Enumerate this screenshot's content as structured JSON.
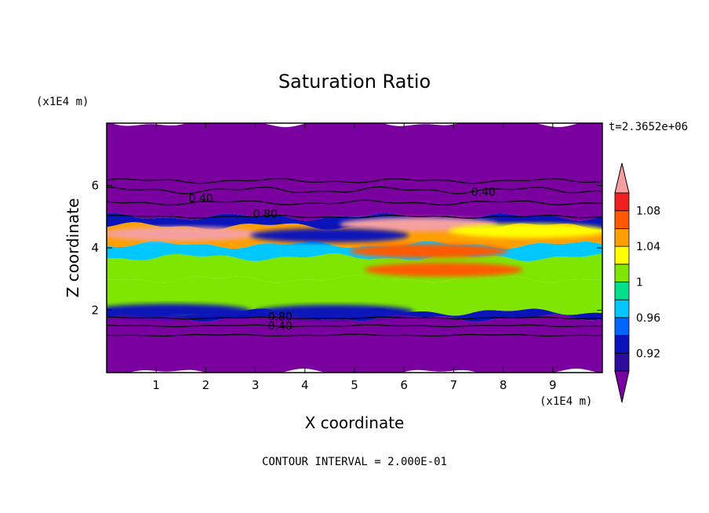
{
  "chart_data": {
    "type": "heatmap",
    "title": "Saturation Ratio",
    "xlabel": "X coordinate",
    "ylabel": "Z coordinate",
    "x_unit": "(x1E4 m)",
    "y_unit": "(x1E4 m)",
    "time_label": "t=2.3652e+06",
    "footer": "CONTOUR INTERVAL = 2.000E-01",
    "xlim": [
      0,
      10
    ],
    "ylim": [
      0,
      8
    ],
    "x_ticks": [
      "1",
      "2",
      "3",
      "4",
      "5",
      "6",
      "7",
      "8",
      "9"
    ],
    "y_ticks": [
      "2",
      "4",
      "6"
    ],
    "colorbar": {
      "levels": [
        0.9,
        0.92,
        0.94,
        0.96,
        0.98,
        1.0,
        1.02,
        1.04,
        1.06,
        1.08,
        1.1
      ],
      "labels": [
        "0.92",
        "0.96",
        "1",
        "1.04",
        "1.08"
      ],
      "colors": [
        "#7a00a0",
        "#2d0d9e",
        "#0a14b8",
        "#0064ff",
        "#00c8ff",
        "#00e08c",
        "#7ee600",
        "#ffff00",
        "#ffa000",
        "#ff5a00",
        "#f02020",
        "#f5a0a0"
      ]
    },
    "contour_labels": [
      {
        "text": "0.40",
        "x": 1.9,
        "z": 5.6
      },
      {
        "text": "0.40",
        "x": 7.6,
        "z": 5.8
      },
      {
        "text": "0.80",
        "x": 3.2,
        "z": 5.1
      },
      {
        "text": "0.80",
        "x": 3.5,
        "z": 1.8
      },
      {
        "text": "0.40",
        "x": 3.5,
        "z": 1.5
      }
    ],
    "bands": [
      {
        "z0": 0.0,
        "z1": 1.75,
        "value": 0.1
      },
      {
        "z0": 1.75,
        "z1": 1.95,
        "value": 0.93
      },
      {
        "z0": 1.95,
        "z1": 3.0,
        "value": 1.0
      },
      {
        "z0": 3.0,
        "z1": 3.7,
        "value": 1.01
      },
      {
        "z0": 3.7,
        "z1": 4.1,
        "value": 0.97
      },
      {
        "z0": 4.1,
        "z1": 4.7,
        "value": 1.05
      },
      {
        "z0": 4.7,
        "z1": 5.0,
        "value": 0.93
      },
      {
        "z0": 5.0,
        "z1": 8.0,
        "value": 0.2
      }
    ],
    "patches": [
      {
        "x": 1.5,
        "z": 4.45,
        "value": 1.1
      },
      {
        "x": 6.3,
        "z": 4.75,
        "value": 1.1
      },
      {
        "x": 6.8,
        "z": 3.3,
        "value": 1.06
      },
      {
        "x": 6.5,
        "z": 3.9,
        "value": 1.07
      },
      {
        "x": 4.5,
        "z": 4.4,
        "value": 0.92
      },
      {
        "x": 4.6,
        "z": 1.95,
        "value": 0.92
      },
      {
        "x": 1.3,
        "z": 1.98,
        "value": 0.93
      },
      {
        "x": 8.5,
        "z": 4.55,
        "value": 1.03
      }
    ]
  }
}
